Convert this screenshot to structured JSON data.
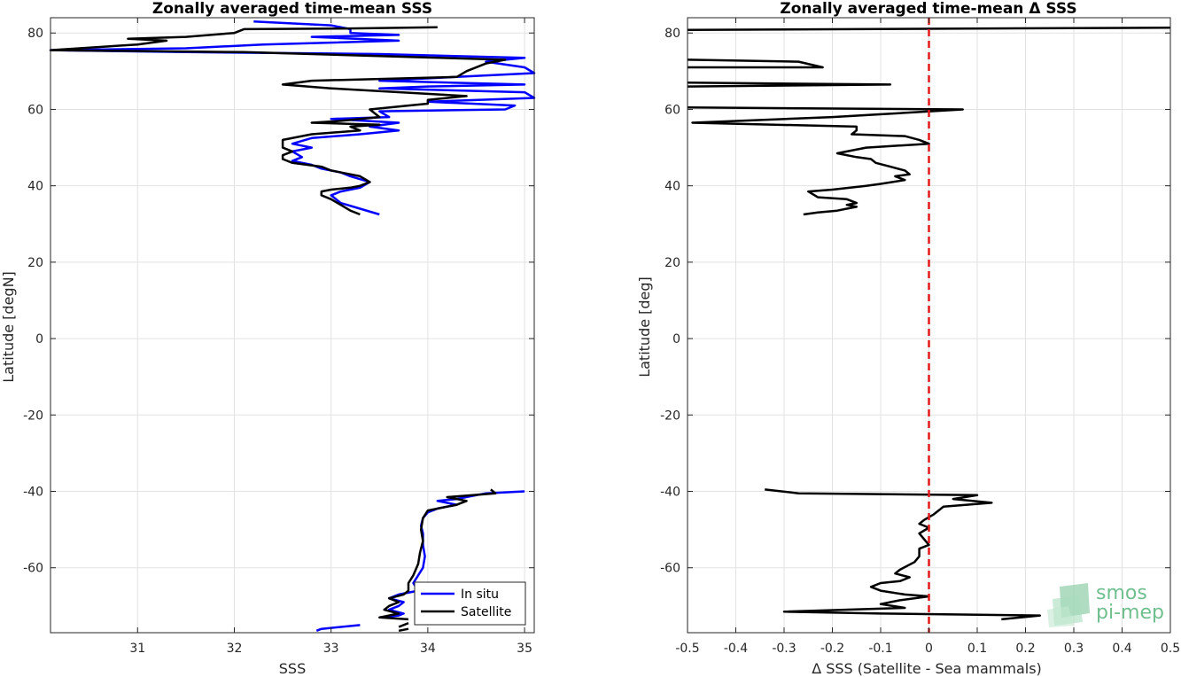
{
  "chart_data": [
    {
      "type": "line",
      "title": "Zonally averaged time-mean SSS",
      "xlabel": "SSS",
      "ylabel": "Latitude [degN]",
      "xlim": [
        30.1,
        35.1
      ],
      "ylim": [
        -77,
        84
      ],
      "xticks": [
        31,
        32,
        33,
        34,
        35
      ],
      "yticks": [
        80,
        60,
        40,
        20,
        0,
        -20,
        -40,
        -60
      ],
      "xtick_labels": [
        "31",
        "32",
        "33",
        "34",
        "35"
      ],
      "ytick_labels": [
        "80",
        "60",
        "40",
        "20",
        "0",
        "-20",
        "-40",
        "-60"
      ],
      "grid": true,
      "legend_position": "bottom-right",
      "series": [
        {
          "name": "In situ",
          "color": "#0000ff",
          "segments": [
            [
              [
                32.2,
                83
              ],
              [
                33.0,
                82
              ],
              [
                33.2,
                81
              ],
              [
                33.2,
                80
              ],
              [
                33.7,
                79.5
              ],
              [
                32.8,
                79
              ],
              [
                33.7,
                78
              ],
              [
                32.3,
                77
              ],
              [
                31.5,
                76
              ],
              [
                30.1,
                75.5
              ],
              [
                31.5,
                75
              ],
              [
                33.5,
                74.5
              ],
              [
                35.0,
                73.5
              ],
              [
                34.6,
                72.5
              ],
              [
                35.0,
                71
              ],
              [
                35.1,
                69.5
              ],
              [
                34.3,
                68.5
              ],
              [
                33.5,
                67.5
              ],
              [
                35.0,
                66.5
              ],
              [
                34.0,
                66
              ],
              [
                33.5,
                65.5
              ],
              [
                35.0,
                64.5
              ],
              [
                35.1,
                63
              ],
              [
                34.0,
                62
              ],
              [
                34.9,
                61
              ],
              [
                34.8,
                60
              ],
              [
                33.5,
                59.5
              ],
              [
                33.6,
                58
              ],
              [
                33.0,
                57.5
              ],
              [
                33.7,
                56.5
              ],
              [
                33.4,
                55.5
              ],
              [
                33.7,
                54.5
              ],
              [
                33.3,
                53.5
              ],
              [
                32.8,
                52.5
              ],
              [
                32.6,
                51
              ],
              [
                32.8,
                50
              ],
              [
                32.6,
                49
              ],
              [
                32.7,
                47.5
              ],
              [
                32.6,
                46.5
              ],
              [
                32.8,
                45.5
              ],
              [
                32.9,
                44.5
              ],
              [
                33.1,
                43.5
              ],
              [
                33.2,
                42.5
              ],
              [
                33.4,
                41
              ],
              [
                33.3,
                39.5
              ],
              [
                33.1,
                38.5
              ],
              [
                33.0,
                37.5
              ],
              [
                33.1,
                35.5
              ],
              [
                33.3,
                34
              ],
              [
                33.5,
                32.5
              ]
            ],
            [
              [
                35.0,
                -40
              ],
              [
                34.6,
                -40.5
              ],
              [
                34.3,
                -42
              ],
              [
                34.1,
                -42.5
              ],
              [
                34.3,
                -43.5
              ],
              [
                34.1,
                -44.5
              ],
              [
                34.0,
                -45.5
              ],
              [
                33.95,
                -47
              ],
              [
                33.93,
                -49
              ],
              [
                33.95,
                -51
              ],
              [
                33.95,
                -54
              ],
              [
                33.97,
                -57
              ],
              [
                33.95,
                -60
              ],
              [
                33.9,
                -62
              ],
              [
                33.85,
                -64
              ],
              [
                33.9,
                -66
              ],
              [
                33.7,
                -67
              ],
              [
                33.6,
                -68
              ],
              [
                33.75,
                -69
              ],
              [
                33.7,
                -70
              ],
              [
                33.6,
                -71
              ],
              [
                33.75,
                -72
              ],
              [
                33.7,
                -72.5
              ],
              [
                33.5,
                -73
              ]
            ],
            [
              [
                33.3,
                -75
              ],
              [
                32.9,
                -76
              ],
              [
                32.85,
                -76.5
              ]
            ]
          ]
        },
        {
          "name": "Satellite",
          "color": "#000000",
          "segments": [
            [
              [
                34.1,
                81.5
              ],
              [
                33.2,
                81.2
              ],
              [
                32.1,
                81
              ],
              [
                32.0,
                80
              ],
              [
                31.5,
                79
              ],
              [
                30.9,
                78.5
              ],
              [
                31.3,
                78
              ],
              [
                31.0,
                77
              ],
              [
                30.1,
                75.5
              ],
              [
                32.1,
                75
              ],
              [
                34.8,
                73
              ],
              [
                34.6,
                72
              ],
              [
                34.4,
                70
              ],
              [
                34.3,
                68.5
              ],
              [
                32.8,
                67.5
              ],
              [
                32.5,
                66.5
              ],
              [
                33.0,
                65.5
              ],
              [
                34.4,
                63.5
              ],
              [
                34.0,
                62.5
              ],
              [
                34.0,
                61.5
              ],
              [
                33.8,
                61
              ],
              [
                33.4,
                60
              ],
              [
                33.5,
                58
              ],
              [
                33.1,
                57
              ],
              [
                32.8,
                56.5
              ],
              [
                33.5,
                56
              ],
              [
                33.2,
                55.5
              ],
              [
                33.3,
                54.5
              ],
              [
                32.8,
                53.5
              ],
              [
                32.5,
                52
              ],
              [
                32.5,
                50
              ],
              [
                32.6,
                49
              ],
              [
                32.5,
                48
              ],
              [
                32.5,
                47
              ],
              [
                32.6,
                46
              ],
              [
                32.9,
                45
              ],
              [
                33.0,
                44
              ],
              [
                33.2,
                43
              ],
              [
                33.3,
                42.5
              ],
              [
                33.4,
                41
              ],
              [
                33.3,
                40
              ],
              [
                33.2,
                39.5
              ],
              [
                33.0,
                39
              ],
              [
                32.9,
                38.5
              ],
              [
                32.9,
                37.5
              ],
              [
                33.0,
                36.5
              ],
              [
                33.1,
                35
              ],
              [
                33.2,
                33.5
              ],
              [
                33.3,
                32.5
              ]
            ],
            [
              [
                34.65,
                -39.5
              ],
              [
                34.7,
                -40.5
              ],
              [
                34.2,
                -41.5
              ],
              [
                34.4,
                -42.5
              ],
              [
                34.3,
                -43.5
              ],
              [
                34.0,
                -45
              ],
              [
                33.95,
                -47
              ],
              [
                33.93,
                -50
              ],
              [
                33.95,
                -53
              ],
              [
                33.92,
                -56
              ],
              [
                33.9,
                -59
              ],
              [
                33.85,
                -62
              ],
              [
                33.8,
                -64
              ],
              [
                33.8,
                -66
              ],
              [
                33.75,
                -67
              ],
              [
                33.6,
                -68
              ],
              [
                33.7,
                -69
              ],
              [
                33.6,
                -70
              ],
              [
                33.55,
                -71
              ],
              [
                33.7,
                -72
              ],
              [
                33.5,
                -73
              ],
              [
                33.8,
                -73.5
              ]
            ],
            [
              [
                33.8,
                -74.5
              ],
              [
                33.7,
                -75.5
              ]
            ],
            [
              [
                33.8,
                -76
              ],
              [
                33.7,
                -76.5
              ]
            ]
          ]
        }
      ]
    },
    {
      "type": "line",
      "title": "Zonally averaged time-mean Δ SSS",
      "xlabel": "Δ SSS (Satellite - Sea mammals)",
      "ylabel": "Latitude [deg]",
      "xlim": [
        -0.5,
        0.5
      ],
      "ylim": [
        -77,
        84
      ],
      "xticks": [
        -0.5,
        -0.4,
        -0.3,
        -0.2,
        -0.1,
        0,
        0.1,
        0.2,
        0.3,
        0.4,
        0.5
      ],
      "yticks": [
        80,
        60,
        40,
        20,
        0,
        -20,
        -40,
        -60
      ],
      "xtick_labels": [
        "-0.5",
        "-0.4",
        "-0.3",
        "-0.2",
        "-0.1",
        "0",
        "0.1",
        "0.2",
        "0.3",
        "0.4",
        "0.5"
      ],
      "ytick_labels": [
        "80",
        "60",
        "40",
        "20",
        "0",
        "-20",
        "-40",
        "-60"
      ],
      "grid": true,
      "reference_line": {
        "x": 0,
        "color": "#e31a1c",
        "style": "dashed"
      },
      "series": [
        {
          "color": "#000000",
          "segments": [
            [
              [
                -0.5,
                80.8
              ],
              [
                0.5,
                81.4
              ]
            ],
            [
              [
                -0.5,
                73
              ],
              [
                -0.27,
                72.5
              ],
              [
                -0.22,
                71
              ],
              [
                -0.5,
                71
              ]
            ],
            [
              [
                -0.5,
                67
              ],
              [
                -0.08,
                66.5
              ],
              [
                -0.5,
                66
              ]
            ],
            [
              [
                -0.5,
                60.5
              ],
              [
                0.07,
                60
              ],
              [
                -0.2,
                58
              ],
              [
                -0.49,
                56.5
              ],
              [
                -0.15,
                55.5
              ],
              [
                -0.15,
                54.5
              ],
              [
                -0.16,
                53.5
              ],
              [
                -0.05,
                53
              ],
              [
                -0.02,
                52
              ],
              [
                0,
                51
              ],
              [
                -0.13,
                50
              ],
              [
                -0.19,
                48.5
              ],
              [
                -0.15,
                47.5
              ],
              [
                -0.12,
                47
              ],
              [
                -0.11,
                46
              ],
              [
                -0.08,
                45
              ],
              [
                -0.05,
                44
              ],
              [
                -0.04,
                43
              ],
              [
                -0.07,
                42.5
              ],
              [
                -0.05,
                41.5
              ],
              [
                -0.1,
                40.5
              ],
              [
                -0.13,
                40
              ],
              [
                -0.2,
                39
              ],
              [
                -0.25,
                38.5
              ],
              [
                -0.23,
                37
              ],
              [
                -0.17,
                36.5
              ],
              [
                -0.15,
                35.5
              ],
              [
                -0.17,
                35
              ],
              [
                -0.15,
                34.5
              ],
              [
                -0.17,
                34
              ],
              [
                -0.19,
                33.5
              ],
              [
                -0.23,
                33
              ],
              [
                -0.26,
                32.5
              ]
            ]
          ]
        },
        {
          "color": "#000000",
          "segments": [
            [
              [
                -0.34,
                -39.5
              ],
              [
                -0.27,
                -40.5
              ],
              [
                0.1,
                -41
              ],
              [
                0.05,
                -42
              ],
              [
                0.13,
                -43
              ],
              [
                0.03,
                -44
              ],
              [
                0.02,
                -45
              ],
              [
                0.01,
                -46
              ],
              [
                -0.01,
                -47.5
              ],
              [
                -0.02,
                -48.5
              ],
              [
                0,
                -49.5
              ],
              [
                -0.02,
                -51
              ],
              [
                -0.01,
                -52.5
              ],
              [
                0,
                -54
              ],
              [
                -0.02,
                -55
              ],
              [
                -0.02,
                -57
              ],
              [
                -0.03,
                -58.5
              ],
              [
                -0.06,
                -60.5
              ],
              [
                -0.07,
                -61.5
              ],
              [
                -0.04,
                -62.5
              ],
              [
                -0.06,
                -63.5
              ],
              [
                -0.1,
                -64
              ],
              [
                -0.12,
                -65
              ],
              [
                -0.1,
                -66
              ],
              [
                -0.05,
                -67
              ],
              [
                0,
                -67.5
              ],
              [
                -0.06,
                -68.5
              ],
              [
                -0.1,
                -69.5
              ],
              [
                -0.05,
                -70.5
              ],
              [
                -0.3,
                -71.5
              ],
              [
                -0.1,
                -72
              ],
              [
                0.23,
                -72.5
              ],
              [
                0.15,
                -73.5
              ]
            ]
          ]
        }
      ]
    }
  ],
  "legend": {
    "in_situ_label": "In situ",
    "satellite_label": "Satellite"
  },
  "logo": {
    "line1": "smos",
    "line2": "pi-mep",
    "color": "#6fbf8f"
  }
}
